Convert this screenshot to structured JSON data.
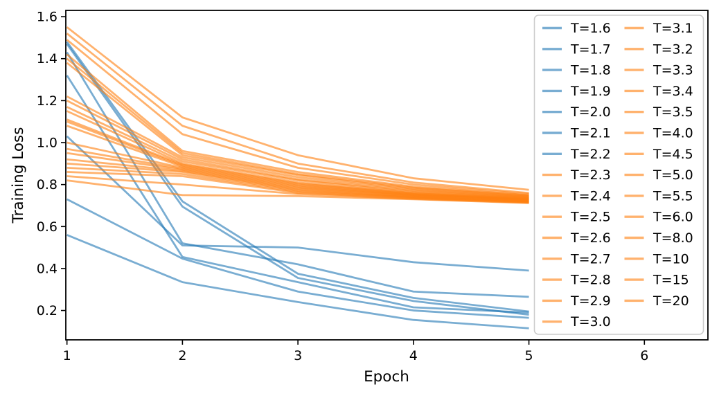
{
  "figure": {
    "background": "#ffffff"
  },
  "chart_data": {
    "type": "line",
    "title": "",
    "xlabel": "Epoch",
    "ylabel": "Training Loss",
    "x": [
      1,
      2,
      3,
      4,
      5
    ],
    "xlim": [
      0.99,
      6.55
    ],
    "ylim": [
      0.06,
      1.63
    ],
    "x_ticks": [
      1,
      2,
      3,
      4,
      5,
      6
    ],
    "y_ticks": [
      0.2,
      0.4,
      0.6,
      0.8,
      1.0,
      1.2,
      1.4,
      1.6
    ],
    "grid": false,
    "legend_position": "upper right",
    "legend_columns": 2,
    "legend_column1_count": 15,
    "colors": {
      "blue": "#1f77b4",
      "orange": "#ff7f0e",
      "line_alpha": 0.6,
      "legend_border": "#cccccc",
      "axis": "#000000"
    },
    "series": [
      {
        "label": "T=1.6",
        "color": "blue",
        "values": [
          0.56,
          0.335,
          0.24,
          0.155,
          0.115
        ]
      },
      {
        "label": "T=1.7",
        "color": "blue",
        "values": [
          0.73,
          0.447,
          0.29,
          0.2,
          0.165
        ]
      },
      {
        "label": "T=1.8",
        "color": "blue",
        "values": [
          1.03,
          0.51,
          0.5,
          0.43,
          0.39
        ]
      },
      {
        "label": "T=1.9",
        "color": "blue",
        "values": [
          1.32,
          0.455,
          0.335,
          0.215,
          0.19
        ]
      },
      {
        "label": "T=2.0",
        "color": "blue",
        "values": [
          1.43,
          0.52,
          0.42,
          0.29,
          0.265
        ]
      },
      {
        "label": "T=2.1",
        "color": "blue",
        "values": [
          1.47,
          0.695,
          0.355,
          0.245,
          0.18
        ]
      },
      {
        "label": "T=2.2",
        "color": "blue",
        "values": [
          1.48,
          0.72,
          0.375,
          0.26,
          0.195
        ]
      },
      {
        "label": "T=2.3",
        "color": "orange",
        "values": [
          0.82,
          0.75,
          0.745,
          0.73,
          0.712
        ]
      },
      {
        "label": "T=2.4",
        "color": "orange",
        "values": [
          0.84,
          0.8,
          0.755,
          0.732,
          0.714
        ]
      },
      {
        "label": "T=2.5",
        "color": "orange",
        "values": [
          0.86,
          0.84,
          0.76,
          0.735,
          0.716
        ]
      },
      {
        "label": "T=2.6",
        "color": "orange",
        "values": [
          0.88,
          0.85,
          0.765,
          0.738,
          0.718
        ]
      },
      {
        "label": "T=2.7",
        "color": "orange",
        "values": [
          0.9,
          0.86,
          0.77,
          0.74,
          0.72
        ]
      },
      {
        "label": "T=2.8",
        "color": "orange",
        "values": [
          0.92,
          0.865,
          0.775,
          0.742,
          0.722
        ]
      },
      {
        "label": "T=2.9",
        "color": "orange",
        "values": [
          0.95,
          0.87,
          0.78,
          0.745,
          0.724
        ]
      },
      {
        "label": "T=3.0",
        "color": "orange",
        "values": [
          0.97,
          0.875,
          0.785,
          0.748,
          0.726
        ]
      },
      {
        "label": "T=3.1",
        "color": "orange",
        "values": [
          1.0,
          0.88,
          0.79,
          0.75,
          0.728
        ]
      },
      {
        "label": "T=3.2",
        "color": "orange",
        "values": [
          1.08,
          0.885,
          0.795,
          0.752,
          0.73
        ]
      },
      {
        "label": "T=3.3",
        "color": "orange",
        "values": [
          1.1,
          0.89,
          0.8,
          0.755,
          0.731
        ]
      },
      {
        "label": "T=3.4",
        "color": "orange",
        "values": [
          1.11,
          0.895,
          0.805,
          0.758,
          0.733
        ]
      },
      {
        "label": "T=3.5",
        "color": "orange",
        "values": [
          1.15,
          0.9,
          0.81,
          0.76,
          0.735
        ]
      },
      {
        "label": "T=4.0",
        "color": "orange",
        "values": [
          1.17,
          0.91,
          0.82,
          0.765,
          0.738
        ]
      },
      {
        "label": "T=4.5",
        "color": "orange",
        "values": [
          1.2,
          0.92,
          0.825,
          0.77,
          0.74
        ]
      },
      {
        "label": "T=5.0",
        "color": "orange",
        "values": [
          1.22,
          0.93,
          0.835,
          0.775,
          0.742
        ]
      },
      {
        "label": "T=5.5",
        "color": "orange",
        "values": [
          1.38,
          0.94,
          0.845,
          0.78,
          0.745
        ]
      },
      {
        "label": "T=6.0",
        "color": "orange",
        "values": [
          1.4,
          0.95,
          0.85,
          0.785,
          0.748
        ]
      },
      {
        "label": "T=8.0",
        "color": "orange",
        "values": [
          1.42,
          0.96,
          0.86,
          0.79,
          0.75
        ]
      },
      {
        "label": "T=10",
        "color": "orange",
        "values": [
          1.49,
          1.04,
          0.88,
          0.8,
          0.755
        ]
      },
      {
        "label": "T=15",
        "color": "orange",
        "values": [
          1.52,
          1.08,
          0.9,
          0.81,
          0.76
        ]
      },
      {
        "label": "T=20",
        "color": "orange",
        "values": [
          1.55,
          1.12,
          0.94,
          0.83,
          0.775
        ]
      }
    ]
  }
}
